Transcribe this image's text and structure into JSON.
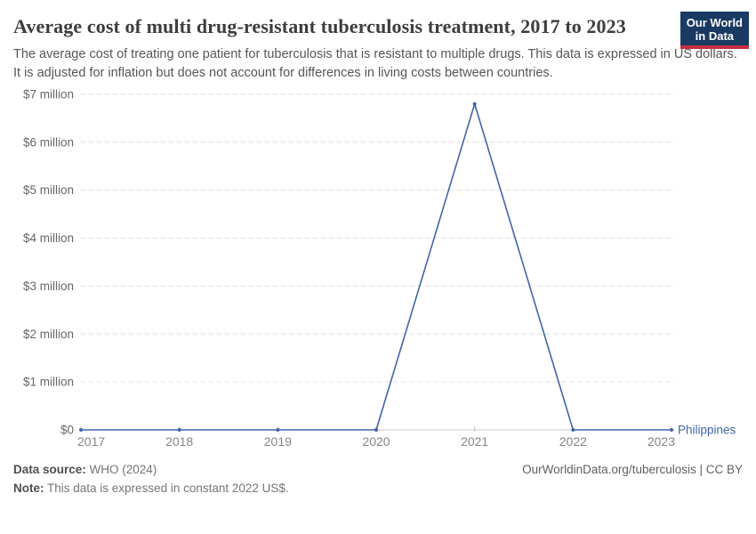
{
  "header": {
    "title": "Average cost of multi drug-resistant tuberculosis treatment, 2017 to 2023",
    "subtitle": "The average cost of treating one patient for tuberculosis that is resistant to multiple drugs. This data is expressed in US dollars. It is adjusted for inflation but does not account for differences in living costs between countries.",
    "logo": {
      "line1": "Our World",
      "line2": "in Data",
      "bg_color": "#1a3a63",
      "accent_color": "#c5303e"
    }
  },
  "chart_data": {
    "type": "line",
    "title": "Average cost of multi drug-resistant tuberculosis treatment, 2017 to 2023",
    "x": [
      2017,
      2018,
      2019,
      2020,
      2021,
      2022,
      2023
    ],
    "series": [
      {
        "name": "Philippines",
        "color": "#4165a8",
        "values": [
          0,
          0,
          0,
          0,
          6800000,
          0,
          0
        ]
      }
    ],
    "xlabel": "",
    "ylabel": "",
    "ylim": [
      0,
      7000000
    ],
    "yticks": [
      {
        "value": 0,
        "label": "$0"
      },
      {
        "value": 1000000,
        "label": "$1 million"
      },
      {
        "value": 2000000,
        "label": "$2 million"
      },
      {
        "value": 3000000,
        "label": "$3 million"
      },
      {
        "value": 4000000,
        "label": "$4 million"
      },
      {
        "value": 5000000,
        "label": "$5 million"
      },
      {
        "value": 6000000,
        "label": "$6 million"
      },
      {
        "value": 7000000,
        "label": "$7 million"
      }
    ],
    "grid": "horizontal-dashed",
    "legend_position": "end-of-line-label"
  },
  "footer": {
    "datasource_label": "Data source:",
    "datasource_value": "WHO (2024)",
    "note_label": "Note:",
    "note_value": "This data is expressed in constant 2022 US$.",
    "rights": "OurWorldinData.org/tuberculosis | CC BY"
  }
}
